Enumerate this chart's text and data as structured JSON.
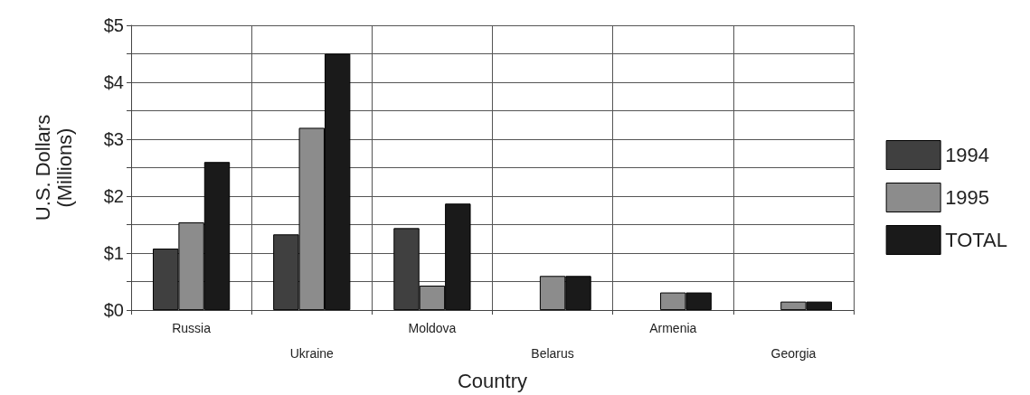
{
  "chart_data": {
    "type": "bar",
    "xlabel": "Country",
    "ylabel": "U.S. Dollars\n(Millions)",
    "categories": [
      "Russia",
      "Ukraine",
      "Moldova",
      "Belarus",
      "Armenia",
      "Georgia"
    ],
    "series": [
      {
        "name": "1994",
        "color": "#404040",
        "values": [
          1.08,
          1.33,
          1.44,
          null,
          null,
          null
        ]
      },
      {
        "name": "1995",
        "color": "#8c8c8c",
        "values": [
          1.54,
          3.2,
          0.43,
          0.6,
          0.31,
          0.15
        ]
      },
      {
        "name": "TOTAL",
        "color": "#1a1a1a",
        "values": [
          2.6,
          4.5,
          1.87,
          0.6,
          0.31,
          0.15
        ]
      }
    ],
    "ylim": [
      0,
      5
    ],
    "yticks": [
      {
        "value": 0,
        "label": "$0"
      },
      {
        "value": 0.5,
        "label": null
      },
      {
        "value": 1,
        "label": "$1"
      },
      {
        "value": 1.5,
        "label": null
      },
      {
        "value": 2,
        "label": "$2"
      },
      {
        "value": 2.5,
        "label": null
      },
      {
        "value": 3,
        "label": "$3"
      },
      {
        "value": 3.5,
        "label": null
      },
      {
        "value": 4,
        "label": "$4"
      },
      {
        "value": 4.5,
        "label": null
      },
      {
        "value": 5,
        "label": "$5"
      }
    ],
    "grid": true,
    "legend": "right"
  }
}
